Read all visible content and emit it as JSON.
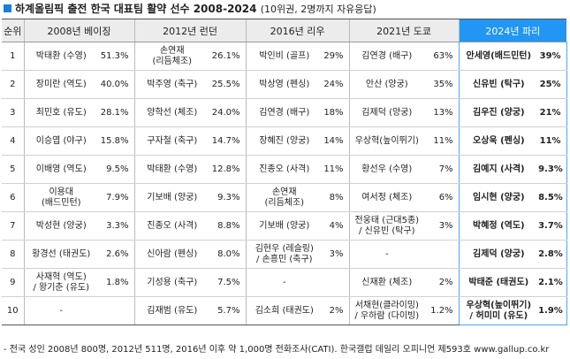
{
  "title": "하계올림픽 출전 한국 대표팀 활약 선수 2008-2024",
  "subtitle": "(10위권, 2명까지 자유응답)",
  "headers": [
    "순위",
    "2008년 베이징",
    "2012년 런던",
    "2016년 리우",
    "2021년 도쿄",
    "2024년 파리"
  ],
  "rows": [
    {
      "rank": "1",
      "cells": [
        [
          "박태환 (수영)",
          "51.3%"
        ],
        [
          "손연재\n(리듬체조)",
          "26.1%"
        ],
        [
          "박인비 (골프)",
          "29%"
        ],
        [
          "김연경 (배구)",
          "63%"
        ],
        [
          "안세영(배드민턴)",
          "39%"
        ]
      ]
    },
    {
      "rank": "2",
      "cells": [
        [
          "장미란 (역도)",
          "40.0%"
        ],
        [
          "박주영 (축구)",
          "25.5%"
        ],
        [
          "박상영 (펜싱)",
          "24%"
        ],
        [
          "안산 (양궁)",
          "35%"
        ],
        [
          "신유빈 (탁구)",
          "25%"
        ]
      ]
    },
    {
      "rank": "3",
      "cells": [
        [
          "최민호 (유도)",
          "28.1%"
        ],
        [
          "양학선 (체조)",
          "24.0%"
        ],
        [
          "김연경 (배구)",
          "18%"
        ],
        [
          "김제덕 (양궁)",
          "13%"
        ],
        [
          "김우진 (양궁)",
          "21%"
        ]
      ]
    },
    {
      "rank": "4",
      "cells": [
        [
          "이승엽 (야구)",
          "15.8%"
        ],
        [
          "구자철 (축구)",
          "14.7%"
        ],
        [
          "장혜진 (양궁)",
          "14%"
        ],
        [
          "우상혁(높이뛰기)",
          "11%"
        ],
        [
          "오상욱 (펜싱)",
          "11%"
        ]
      ]
    },
    {
      "rank": "5",
      "cells": [
        [
          "이배영 (역도)",
          "9.5%"
        ],
        [
          "박태환 (수영)",
          "12.8%"
        ],
        [
          "진종오 (사격)",
          "11%"
        ],
        [
          "황선우 (수영)",
          "7%"
        ],
        [
          "김예지 (사격)",
          "9.3%"
        ]
      ]
    },
    {
      "rank": "6",
      "cells": [
        [
          "이용대\n(배드민턴)",
          "7.9%"
        ],
        [
          "기보배 (양궁)",
          "9.3%"
        ],
        [
          "손연재\n(리듬체조)",
          "8%"
        ],
        [
          "여서정 (체조)",
          "6%"
        ],
        [
          "임시현 (양궁)",
          "8.5%"
        ]
      ]
    },
    {
      "rank": "7",
      "cells": [
        [
          "박성현 (양궁)",
          "3.3%"
        ],
        [
          "진종오 (사격)",
          "8.8%"
        ],
        [
          "기보배 (양궁)",
          "4%"
        ],
        [
          "전웅태 (근대5종)\n/ 신유빈 (탁구)",
          "3%"
        ],
        [
          "박혜정 (역도)",
          "3.7%"
        ]
      ]
    },
    {
      "rank": "8",
      "cells": [
        [
          "황경선 (태권도)",
          "2.6%"
        ],
        [
          "신아람 (펜싱)",
          "8.0%"
        ],
        [
          "김현우 (레슬링)\n/ 손흥민 (축구)",
          "3%"
        ],
        [
          "-",
          ""
        ],
        [
          "김제덕 (양궁)",
          "2.8%"
        ]
      ]
    },
    {
      "rank": "9",
      "cells": [
        [
          "사재혁 (역도)\n/ 왕기춘 (유도)",
          "1.8%"
        ],
        [
          "기성용 (축구)",
          "7.5%"
        ],
        [
          "-",
          ""
        ],
        [
          "신재환 (체조)",
          "2%"
        ],
        [
          "박태준 (태권도)",
          "2.1%"
        ]
      ]
    },
    {
      "rank": "10",
      "cells": [
        [
          "-",
          ""
        ],
        [
          "김재범 (유도)",
          "5.7%"
        ],
        [
          "김소희 (태권도)",
          "2%"
        ],
        [
          "서채현(클라이밍)\n/ 우하람 (다이빙)",
          "1.2%"
        ],
        [
          "우상혁(높이뛰기)\n/ 허미미 (유도)",
          "1.9%"
        ]
      ]
    }
  ],
  "footnote": "- 전국 성인 2008년 800명, 2012년 511명, 2016년 이후 약 1,000명 전화조사(CATI). 한국갤럽 데일리 오피니언 제593호 www.gallup.co.kr",
  "colors": {
    "highlight": "#2196f3",
    "header_bg": "#ececec"
  }
}
